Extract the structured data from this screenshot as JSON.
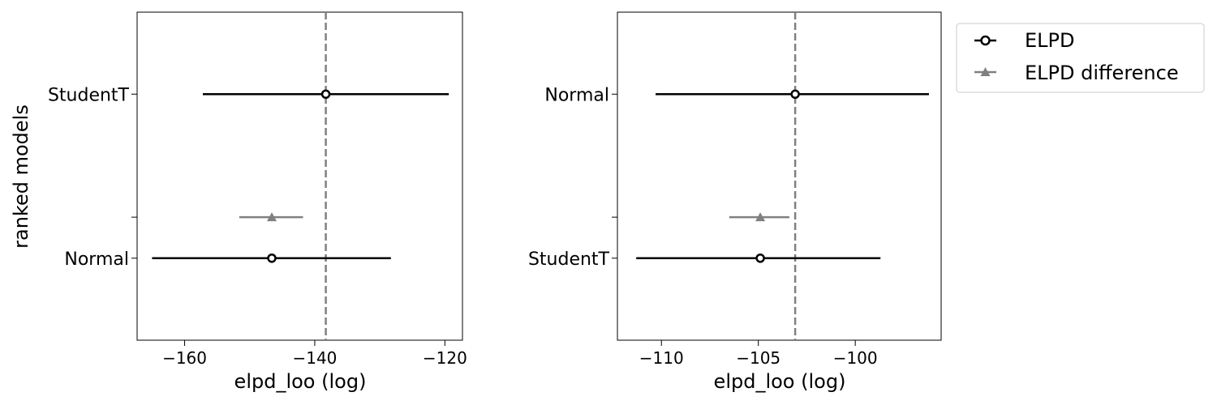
{
  "chart_data": [
    {
      "type": "scatter",
      "xlabel": "elpd_loo (log)",
      "ylabel": "ranked models",
      "xlim": [
        -167.3,
        -117.3
      ],
      "xticks": [
        -160,
        -140,
        -120
      ],
      "xtick_labels": [
        "−160",
        "−140",
        "−120"
      ],
      "ylim": [
        -0.5,
        1.5
      ],
      "yticks": [
        {
          "value": 1.0,
          "label": "StudentT"
        },
        {
          "value": 0.25,
          "label": ""
        },
        {
          "value": 0.0,
          "label": "Normal"
        }
      ],
      "reference_line": -138.3,
      "series": [
        {
          "name": "ELPD",
          "points": [
            {
              "model": "StudentT",
              "y": 1.0,
              "x": -138.3,
              "low": -157.2,
              "high": -119.4
            },
            {
              "model": "Normal",
              "y": 0.0,
              "x": -146.6,
              "low": -165.0,
              "high": -128.3
            }
          ]
        },
        {
          "name": "ELPD difference",
          "points": [
            {
              "model": "Normal",
              "y": 0.25,
              "x": -146.6,
              "low": -151.6,
              "high": -141.8
            }
          ]
        }
      ]
    },
    {
      "type": "scatter",
      "xlabel": "elpd_loo (log)",
      "ylabel": "",
      "xlim": [
        -112.27,
        -95.57
      ],
      "xticks": [
        -110,
        -105,
        -100
      ],
      "xtick_labels": [
        "−110",
        "−105",
        "−100"
      ],
      "ylim": [
        -0.5,
        1.5
      ],
      "yticks": [
        {
          "value": 1.0,
          "label": "Normal"
        },
        {
          "value": 0.25,
          "label": ""
        },
        {
          "value": 0.0,
          "label": "StudentT"
        }
      ],
      "reference_line": -103.1,
      "series": [
        {
          "name": "ELPD",
          "points": [
            {
              "model": "Normal",
              "y": 1.0,
              "x": -103.1,
              "low": -110.3,
              "high": -96.2
            },
            {
              "model": "StudentT",
              "y": 0.0,
              "x": -104.9,
              "low": -111.3,
              "high": -98.7
            }
          ]
        },
        {
          "name": "ELPD difference",
          "points": [
            {
              "model": "StudentT",
              "y": 0.25,
              "x": -104.9,
              "low": -106.5,
              "high": -103.4
            }
          ]
        }
      ]
    }
  ],
  "legend": {
    "placement": "top-right, outside plot area",
    "items": [
      {
        "label": "ELPD",
        "marker": "circle-open",
        "color": "#000000"
      },
      {
        "label": "ELPD difference",
        "marker": "triangle",
        "color": "#808080"
      }
    ]
  },
  "colors": {
    "elpd": "#000000",
    "difference": "#808080",
    "reference": "#808080"
  }
}
